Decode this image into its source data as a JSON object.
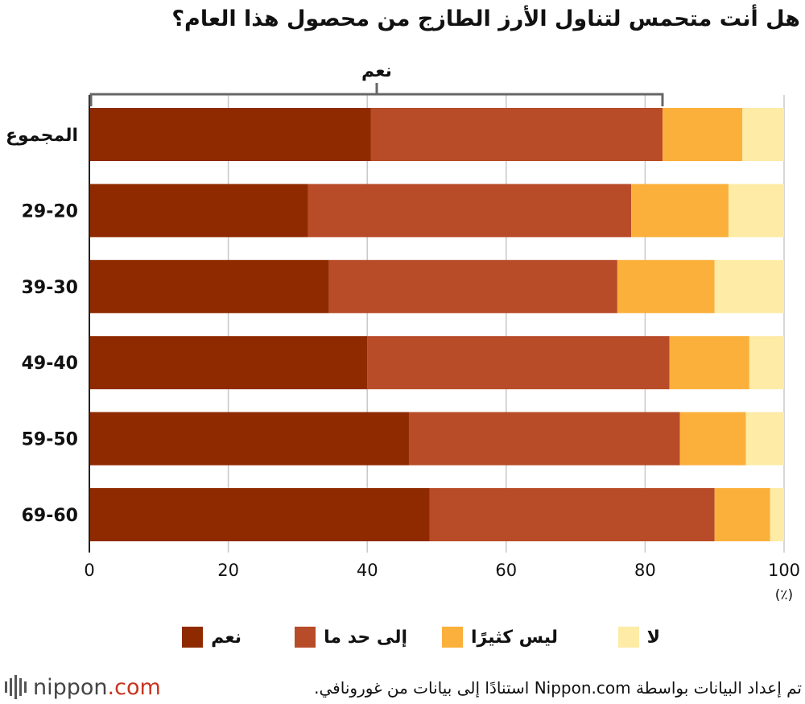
{
  "title": "هل أنت متحمس لتناول الأرز الطازج من محصول هذا العام؟",
  "colors": {
    "yes": "#8f2a00",
    "somewhat": "#b84b28",
    "not_much": "#fbb03b",
    "no": "#fdeba6",
    "grid": "#c8c8c8",
    "bracket": "#666666"
  },
  "chart_data": {
    "type": "bar",
    "orientation": "horizontal",
    "stacked": true,
    "categories": [
      "المجموع",
      "29-20",
      "39-30",
      "49-40",
      "59-50",
      "69-60"
    ],
    "series": [
      {
        "name": "نعم",
        "key": "yes",
        "values": [
          40.5,
          31.5,
          34.5,
          40,
          46,
          49
        ]
      },
      {
        "name": "إلى حد ما",
        "key": "somewhat",
        "values": [
          42,
          46.5,
          41.5,
          43.5,
          39,
          41
        ]
      },
      {
        "name": "ليس كثيرًا",
        "key": "not_much",
        "values": [
          11.5,
          14,
          14,
          11.5,
          9.5,
          8
        ]
      },
      {
        "name": "لا",
        "key": "no",
        "values": [
          6,
          8,
          10,
          5,
          5.5,
          2
        ]
      }
    ],
    "x_ticks": [
      0,
      20,
      40,
      60,
      80,
      100
    ],
    "xlim": [
      0,
      100
    ],
    "unit_label": "(٪)",
    "grid": true,
    "bracket": {
      "label": "نعم",
      "from": 0,
      "to": 82.5
    }
  },
  "legend": [
    {
      "label": "نعم",
      "key": "yes"
    },
    {
      "label": "إلى حد ما",
      "key": "somewhat"
    },
    {
      "label": "ليس كثيرًا",
      "key": "not_much"
    },
    {
      "label": "لا",
      "key": "no"
    }
  ],
  "source": "تم إعداد البيانات بواسطة Nippon.com استنادًا إلى بيانات من غورونافي.",
  "logo": {
    "name": "nippon",
    "suffix": ".com"
  }
}
